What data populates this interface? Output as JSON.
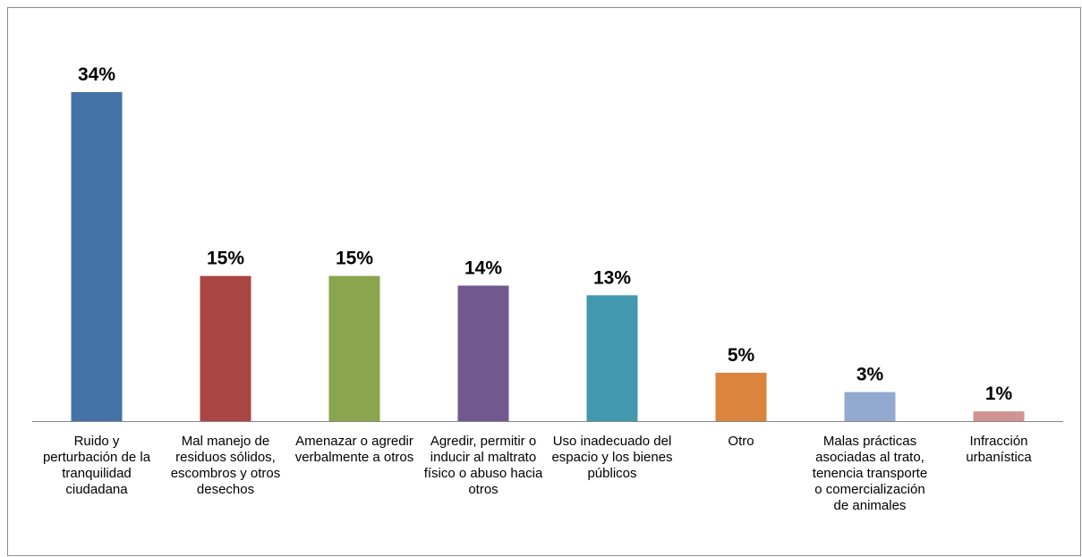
{
  "chart_data": {
    "type": "bar",
    "categories": [
      "Ruido y perturbación de la tranquilidad ciudadana",
      "Mal manejo de residuos sólidos, escombros y otros desechos",
      "Amenazar o agredir verbalmente a otros",
      "Agredir, permitir o inducir al maltrato físico o abuso hacia otros",
      "Uso inadecuado del espacio y los bienes públicos",
      "Otro",
      "Malas prácticas asociadas al trato, tenencia transporte o comercialización de animales",
      "Infracción urbanística"
    ],
    "values": [
      34,
      15,
      15,
      14,
      13,
      5,
      3,
      1
    ],
    "value_labels": [
      "34%",
      "15%",
      "15%",
      "14%",
      "13%",
      "5%",
      "3%",
      "1%"
    ],
    "colors": [
      "#4572a7",
      "#aa4643",
      "#89a54e",
      "#71588f",
      "#4198af",
      "#db843d",
      "#93a9cf",
      "#d19392"
    ],
    "title": "",
    "xlabel": "",
    "ylabel": "",
    "ylim": [
      0,
      34
    ],
    "grid": false,
    "legend": "none"
  }
}
